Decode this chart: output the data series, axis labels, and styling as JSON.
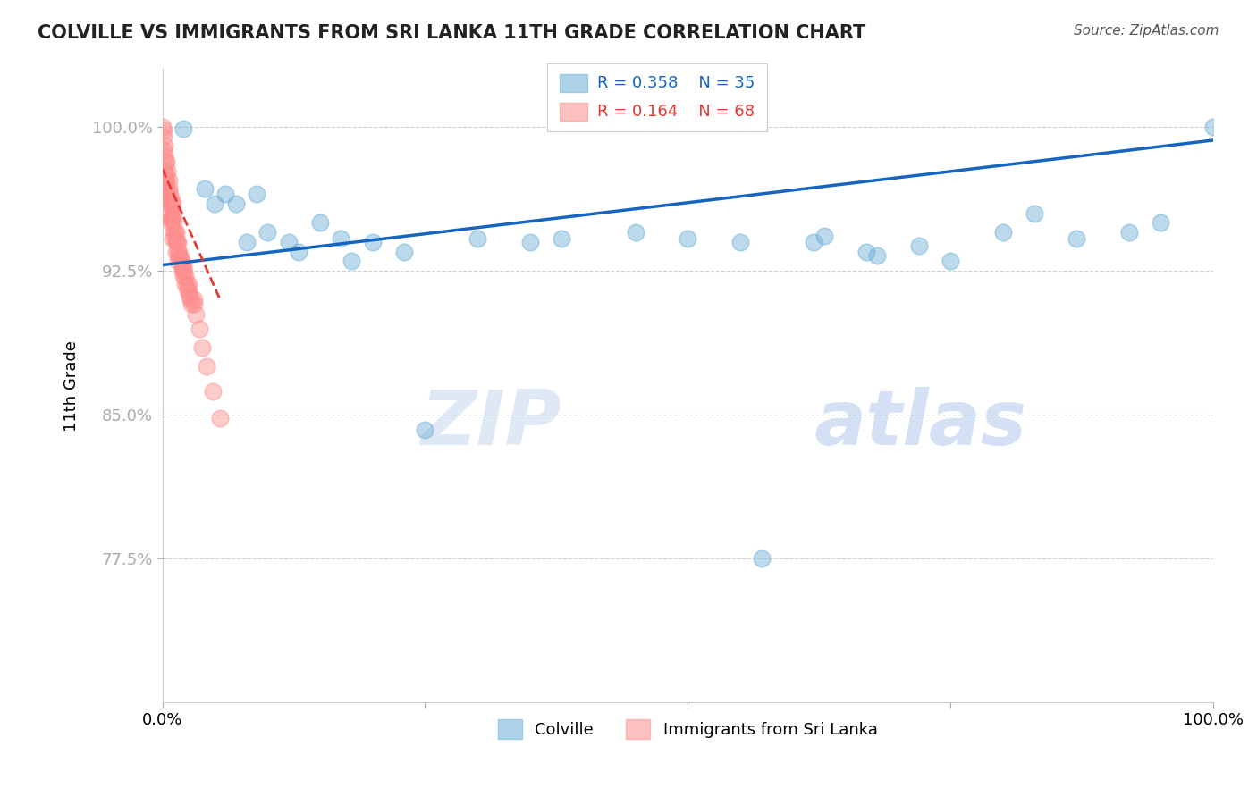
{
  "title": "COLVILLE VS IMMIGRANTS FROM SRI LANKA 11TH GRADE CORRELATION CHART",
  "source": "Source: ZipAtlas.com",
  "ylabel": "11th Grade",
  "xlim": [
    0.0,
    1.0
  ],
  "ylim": [
    0.7,
    1.03
  ],
  "yticks": [
    0.775,
    0.85,
    0.925,
    1.0
  ],
  "ytick_labels": [
    "77.5%",
    "85.0%",
    "92.5%",
    "100.0%"
  ],
  "xticks": [
    0.0,
    0.25,
    0.5,
    0.75,
    1.0
  ],
  "xtick_labels": [
    "0.0%",
    "",
    "",
    "",
    "100.0%"
  ],
  "legend_r_blue": "R = 0.358",
  "legend_n_blue": "N = 35",
  "legend_r_pink": "R = 0.164",
  "legend_n_pink": "N = 68",
  "blue_color": "#6baed6",
  "pink_color": "#fd8d8d",
  "trend_blue_color": "#1565C0",
  "trend_pink_color": "#E53935",
  "watermark_zip": "ZIP",
  "watermark_atlas": "atlas",
  "blue_scatter_x": [
    0.02,
    0.04,
    0.05,
    0.06,
    0.07,
    0.09,
    0.1,
    0.12,
    0.15,
    0.17,
    0.2,
    0.23,
    0.3,
    0.35,
    0.38,
    0.45,
    0.5,
    0.55,
    0.62,
    0.63,
    0.67,
    0.68,
    0.72,
    0.75,
    0.8,
    0.83,
    0.87,
    0.92,
    0.95,
    1.0,
    0.08,
    0.13,
    0.18,
    0.25,
    0.57
  ],
  "blue_scatter_y": [
    0.999,
    0.968,
    0.96,
    0.965,
    0.96,
    0.965,
    0.945,
    0.94,
    0.95,
    0.942,
    0.94,
    0.935,
    0.942,
    0.94,
    0.942,
    0.945,
    0.942,
    0.94,
    0.94,
    0.943,
    0.935,
    0.933,
    0.938,
    0.93,
    0.945,
    0.955,
    0.942,
    0.945,
    0.95,
    1.0,
    0.94,
    0.935,
    0.93,
    0.842,
    0.775
  ],
  "pink_scatter_x": [
    0.001,
    0.001,
    0.002,
    0.003,
    0.003,
    0.004,
    0.004,
    0.005,
    0.005,
    0.006,
    0.006,
    0.007,
    0.007,
    0.008,
    0.008,
    0.009,
    0.009,
    0.01,
    0.01,
    0.01,
    0.011,
    0.011,
    0.012,
    0.013,
    0.013,
    0.014,
    0.015,
    0.015,
    0.016,
    0.017,
    0.018,
    0.019,
    0.02,
    0.021,
    0.022,
    0.023,
    0.024,
    0.025,
    0.026,
    0.028,
    0.03,
    0.002,
    0.003,
    0.005,
    0.008,
    0.012,
    0.015,
    0.02,
    0.025,
    0.03,
    0.0,
    0.001,
    0.002,
    0.004,
    0.006,
    0.009,
    0.011,
    0.013,
    0.016,
    0.019,
    0.022,
    0.027,
    0.032,
    0.035,
    0.038,
    0.042,
    0.048,
    0.055
  ],
  "pink_scatter_y": [
    0.998,
    0.988,
    0.99,
    0.982,
    0.972,
    0.982,
    0.972,
    0.977,
    0.967,
    0.972,
    0.962,
    0.965,
    0.955,
    0.96,
    0.95,
    0.962,
    0.952,
    0.96,
    0.952,
    0.942,
    0.955,
    0.945,
    0.945,
    0.945,
    0.935,
    0.94,
    0.94,
    0.93,
    0.935,
    0.932,
    0.93,
    0.927,
    0.928,
    0.925,
    0.922,
    0.918,
    0.915,
    0.915,
    0.912,
    0.908,
    0.91,
    0.976,
    0.968,
    0.963,
    0.952,
    0.942,
    0.935,
    0.922,
    0.918,
    0.908,
    1.0,
    0.995,
    0.985,
    0.975,
    0.968,
    0.958,
    0.95,
    0.94,
    0.932,
    0.925,
    0.918,
    0.91,
    0.902,
    0.895,
    0.885,
    0.875,
    0.862,
    0.848
  ],
  "blue_trend_x0": 0.0,
  "blue_trend_y0": 0.928,
  "blue_trend_x1": 1.0,
  "blue_trend_y1": 0.993,
  "pink_trend_x0": 0.0,
  "pink_trend_y0": 0.978,
  "pink_trend_x1": 0.055,
  "pink_trend_y1": 0.91
}
